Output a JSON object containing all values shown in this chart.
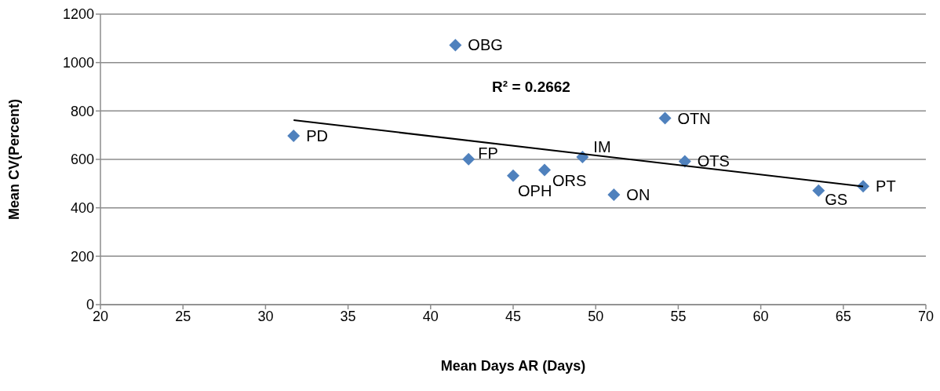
{
  "chart_data": {
    "type": "scatter",
    "xlabel": "Mean Days AR (Days)",
    "ylabel": "Mean CV(Percent)",
    "xlim": [
      20,
      70
    ],
    "xticks": [
      20,
      25,
      30,
      35,
      40,
      45,
      50,
      55,
      60,
      65,
      70
    ],
    "ylim": [
      0,
      1200
    ],
    "yticks": [
      0,
      200,
      400,
      600,
      800,
      1000,
      1200
    ],
    "grid": "y",
    "legend": false,
    "series": [
      {
        "marker": "diamond",
        "color": "#4f81bd",
        "x": [
          31.7,
          41.5,
          42.3,
          45.0,
          46.9,
          49.2,
          51.1,
          54.2,
          55.4,
          63.5,
          66.2
        ],
        "values": [
          697,
          1072,
          601,
          533,
          556,
          610,
          454,
          770,
          592,
          471,
          489
        ]
      },
      {
        "type": "line",
        "marker": "none",
        "color": "#000000",
        "x": [
          31.7,
          66.2
        ],
        "values": [
          762,
          488
        ]
      }
    ],
    "annotations": [
      {
        "text": "PD",
        "x": 31.7,
        "y": 697
      },
      {
        "text": "OBG",
        "x": 41.5,
        "y": 1072
      },
      {
        "text": "FP",
        "x": 42.3,
        "y": 601
      },
      {
        "text": "OPH",
        "x": 45.0,
        "y": 533
      },
      {
        "text": "ORS",
        "x": 46.9,
        "y": 556
      },
      {
        "text": "IM",
        "x": 49.2,
        "y": 610
      },
      {
        "text": "ON",
        "x": 51.1,
        "y": 454
      },
      {
        "text": "OTN",
        "x": 54.2,
        "y": 770
      },
      {
        "text": "OTS",
        "x": 55.4,
        "y": 592
      },
      {
        "text": "GS",
        "x": 63.5,
        "y": 471
      },
      {
        "text": "PT",
        "x": 66.2,
        "y": 489
      },
      "R² = 0.2662"
    ]
  }
}
